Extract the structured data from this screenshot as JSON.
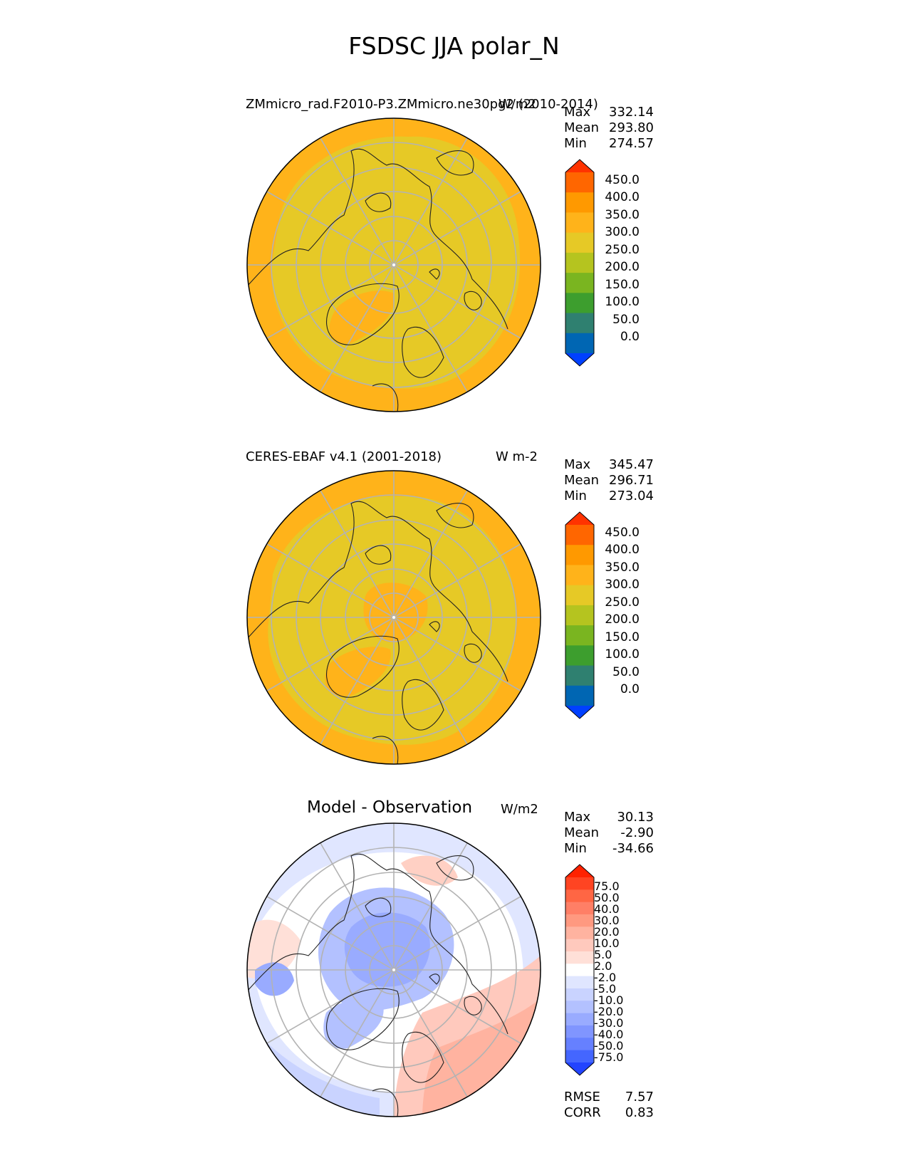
{
  "figure": {
    "title": "FSDSC JJA polar_N"
  },
  "panels": [
    {
      "id": "model",
      "title": "ZMmicro_rad.F2010-P3.ZMmicro.ne30pg2 (2010-2014)",
      "units": "W/m2",
      "stats": [
        {
          "label": "Max",
          "value": "332.14"
        },
        {
          "label": "Mean",
          "value": "293.80"
        },
        {
          "label": "Min",
          "value": "274.57"
        }
      ],
      "colorbar": {
        "ticks": [
          "450.0",
          "400.0",
          "350.0",
          "300.0",
          "250.0",
          "200.0",
          "150.0",
          "100.0",
          "50.0",
          "0.0"
        ],
        "colors": [
          "#ff3300",
          "#ff6600",
          "#ff9900",
          "#ffb31a",
          "#e6c926",
          "#b5c41f",
          "#7ab520",
          "#3d9e2e",
          "#2f8070",
          "#0066b3",
          "#0040ff"
        ]
      }
    },
    {
      "id": "obs",
      "title": "CERES-EBAF v4.1 (2001-2018)",
      "units": "W m-2",
      "stats": [
        {
          "label": "Max",
          "value": "345.47"
        },
        {
          "label": "Mean",
          "value": "296.71"
        },
        {
          "label": "Min",
          "value": "273.04"
        }
      ],
      "colorbar": {
        "ticks": [
          "450.0",
          "400.0",
          "350.0",
          "300.0",
          "250.0",
          "200.0",
          "150.0",
          "100.0",
          "50.0",
          "0.0"
        ],
        "colors": [
          "#ff3300",
          "#ff6600",
          "#ff9900",
          "#ffb31a",
          "#e6c926",
          "#b5c41f",
          "#7ab520",
          "#3d9e2e",
          "#2f8070",
          "#0066b3",
          "#0040ff"
        ]
      }
    },
    {
      "id": "diff",
      "title": "Model - Observation",
      "units": "W/m2",
      "stats": [
        {
          "label": "Max",
          "value": "30.13"
        },
        {
          "label": "Mean",
          "value": "-2.90"
        },
        {
          "label": "Min",
          "value": "-34.66"
        }
      ],
      "colorbar": {
        "ticks": [
          "75.0",
          "50.0",
          "40.0",
          "30.0",
          "20.0",
          "10.0",
          "5.0",
          "2.0",
          "-2.0",
          "-5.0",
          "-10.0",
          "-20.0",
          "-30.0",
          "-40.0",
          "-50.0",
          "-75.0"
        ],
        "colors": [
          "#ff2200",
          "#ff4422",
          "#ff6644",
          "#ff7f66",
          "#ff9980",
          "#ffb3a0",
          "#ffc9bd",
          "#ffe0d8",
          "#ffffff",
          "#e0e6ff",
          "#c9d3ff",
          "#b3c1ff",
          "#99abff",
          "#8095ff",
          "#6680ff",
          "#4466ff",
          "#2244ff"
        ]
      },
      "metrics": [
        {
          "label": "RMSE",
          "value": "7.57"
        },
        {
          "label": "CORR",
          "value": "0.83"
        }
      ]
    }
  ]
}
